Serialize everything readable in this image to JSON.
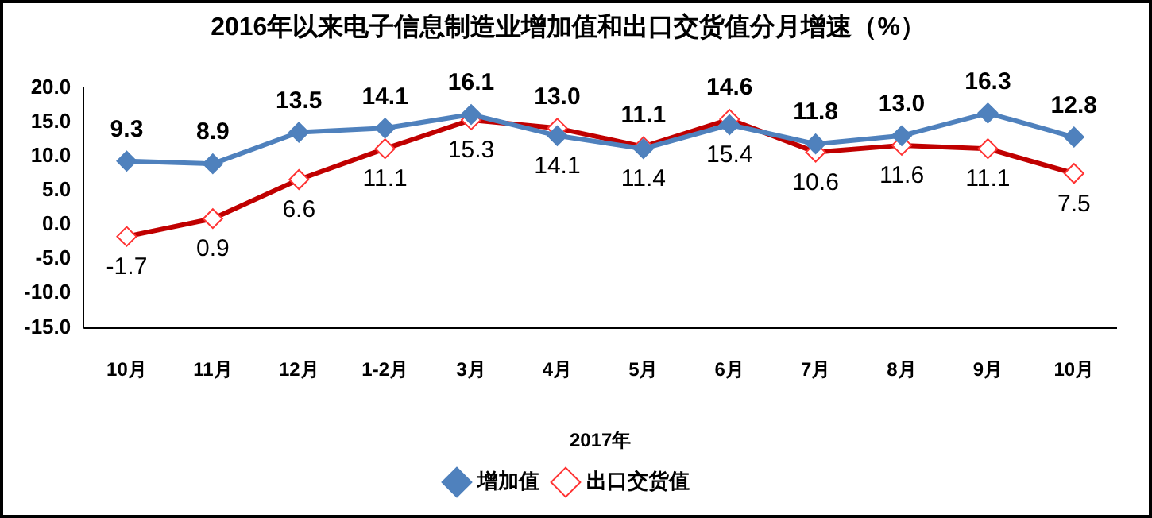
{
  "chart_data": {
    "type": "line",
    "title": "2016年以来电子信息制造业增加值和出口交货值分月增速（%）",
    "xlabel": "2017年",
    "categories": [
      "10月",
      "11月",
      "12月",
      "1-2月",
      "3月",
      "4月",
      "5月",
      "6月",
      "7月",
      "8月",
      "9月",
      "10月"
    ],
    "series": [
      {
        "name": "增加值",
        "color": "#4f81bd",
        "values": [
          9.3,
          8.9,
          13.5,
          14.1,
          16.1,
          13.0,
          11.1,
          14.6,
          11.8,
          13.0,
          16.3,
          12.8
        ],
        "value_labels": [
          "9.3",
          "8.9",
          "13.5",
          "14.1",
          "16.1",
          "13.0",
          "11.1",
          "14.6",
          "11.8",
          "13.0",
          "16.3",
          "12.8"
        ]
      },
      {
        "name": "出口交货值",
        "color": "#c00000",
        "values": [
          -1.7,
          0.9,
          6.6,
          11.1,
          15.3,
          14.1,
          11.4,
          15.4,
          10.6,
          11.6,
          11.1,
          7.5
        ],
        "value_labels": [
          "-1.7",
          "0.9",
          "6.6",
          "11.1",
          "15.3",
          "14.1",
          "11.4",
          "15.4",
          "10.6",
          "11.6",
          "11.1",
          "7.5"
        ]
      }
    ],
    "ylim": [
      -15,
      20
    ],
    "yticks": [
      {
        "value": 20,
        "label": "20.0"
      },
      {
        "value": 15,
        "label": "15.0"
      },
      {
        "value": 10,
        "label": "10.0"
      },
      {
        "value": 5,
        "label": "5.0"
      },
      {
        "value": 0,
        "label": "0.0"
      },
      {
        "value": -5,
        "label": "-5.0"
      },
      {
        "value": -10,
        "label": "-10.0"
      },
      {
        "value": -15,
        "label": "-15.0"
      }
    ],
    "grid": false,
    "legend": "bottom",
    "marker": "diamond",
    "line_style": "solid"
  }
}
